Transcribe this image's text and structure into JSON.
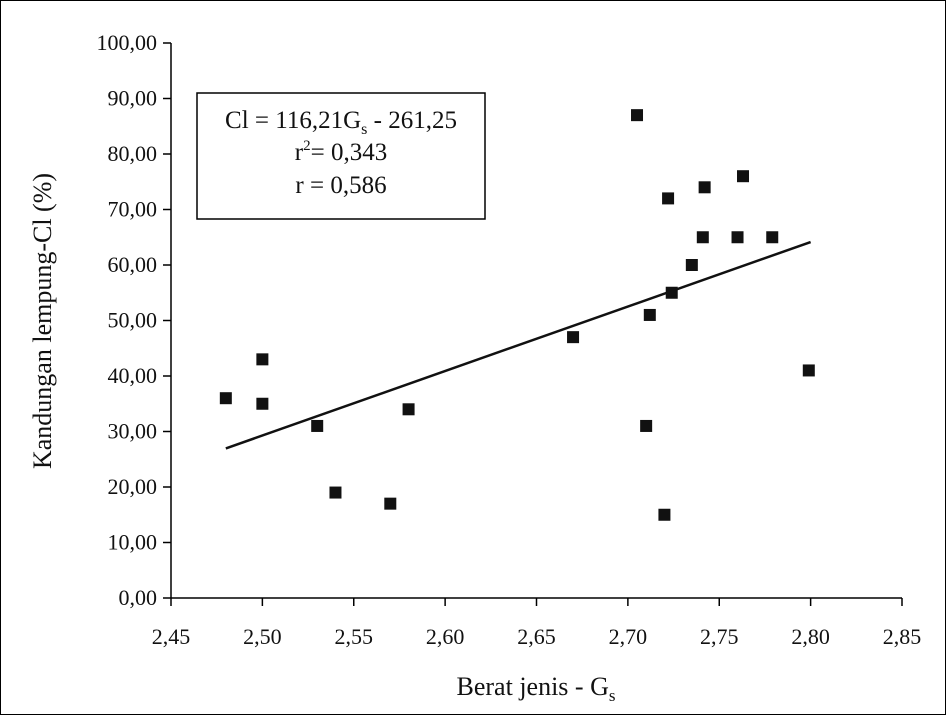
{
  "chart_data": {
    "type": "scatter",
    "title": "",
    "xlabel": "Berat jenis - G",
    "xlabel_sub": "s",
    "ylabel": "Kandungan lempung-Cl (%)",
    "xlim": [
      2.45,
      2.85
    ],
    "ylim": [
      0,
      100
    ],
    "x_ticks": [
      2.45,
      2.5,
      2.55,
      2.6,
      2.65,
      2.7,
      2.75,
      2.8,
      2.85
    ],
    "x_tick_labels": [
      "2,45",
      "2,50",
      "2,55",
      "2,60",
      "2,65",
      "2,70",
      "2,75",
      "2,80",
      "2,85"
    ],
    "y_ticks": [
      0,
      10,
      20,
      30,
      40,
      50,
      60,
      70,
      80,
      90,
      100
    ],
    "y_tick_labels": [
      "0,00",
      "10,00",
      "20,00",
      "30,00",
      "40,00",
      "50,00",
      "60,00",
      "70,00",
      "80,00",
      "90,00",
      "100,00"
    ],
    "grid": false,
    "marker": "square",
    "marker_color": "#111111",
    "points": [
      {
        "x": 2.48,
        "y": 36
      },
      {
        "x": 2.5,
        "y": 43
      },
      {
        "x": 2.5,
        "y": 35
      },
      {
        "x": 2.53,
        "y": 31
      },
      {
        "x": 2.54,
        "y": 19
      },
      {
        "x": 2.57,
        "y": 17
      },
      {
        "x": 2.58,
        "y": 34
      },
      {
        "x": 2.67,
        "y": 47
      },
      {
        "x": 2.705,
        "y": 87
      },
      {
        "x": 2.71,
        "y": 31
      },
      {
        "x": 2.712,
        "y": 51
      },
      {
        "x": 2.72,
        "y": 15
      },
      {
        "x": 2.722,
        "y": 72
      },
      {
        "x": 2.724,
        "y": 55
      },
      {
        "x": 2.735,
        "y": 60
      },
      {
        "x": 2.741,
        "y": 65
      },
      {
        "x": 2.742,
        "y": 74
      },
      {
        "x": 2.76,
        "y": 65
      },
      {
        "x": 2.763,
        "y": 76
      },
      {
        "x": 2.779,
        "y": 65
      },
      {
        "x": 2.799,
        "y": 41
      }
    ],
    "trendline": {
      "x_start": 2.48,
      "x_end": 2.8,
      "slope": 116.21,
      "intercept": -261.25
    },
    "annotation": {
      "eq_prefix": "Cl = 116,21G",
      "eq_sub": "s",
      "eq_suffix": " - 261,25",
      "r2_prefix": "r",
      "r2_sup": "2",
      "r2_suffix": "= 0,343",
      "r_line": "r = 0,586"
    }
  }
}
